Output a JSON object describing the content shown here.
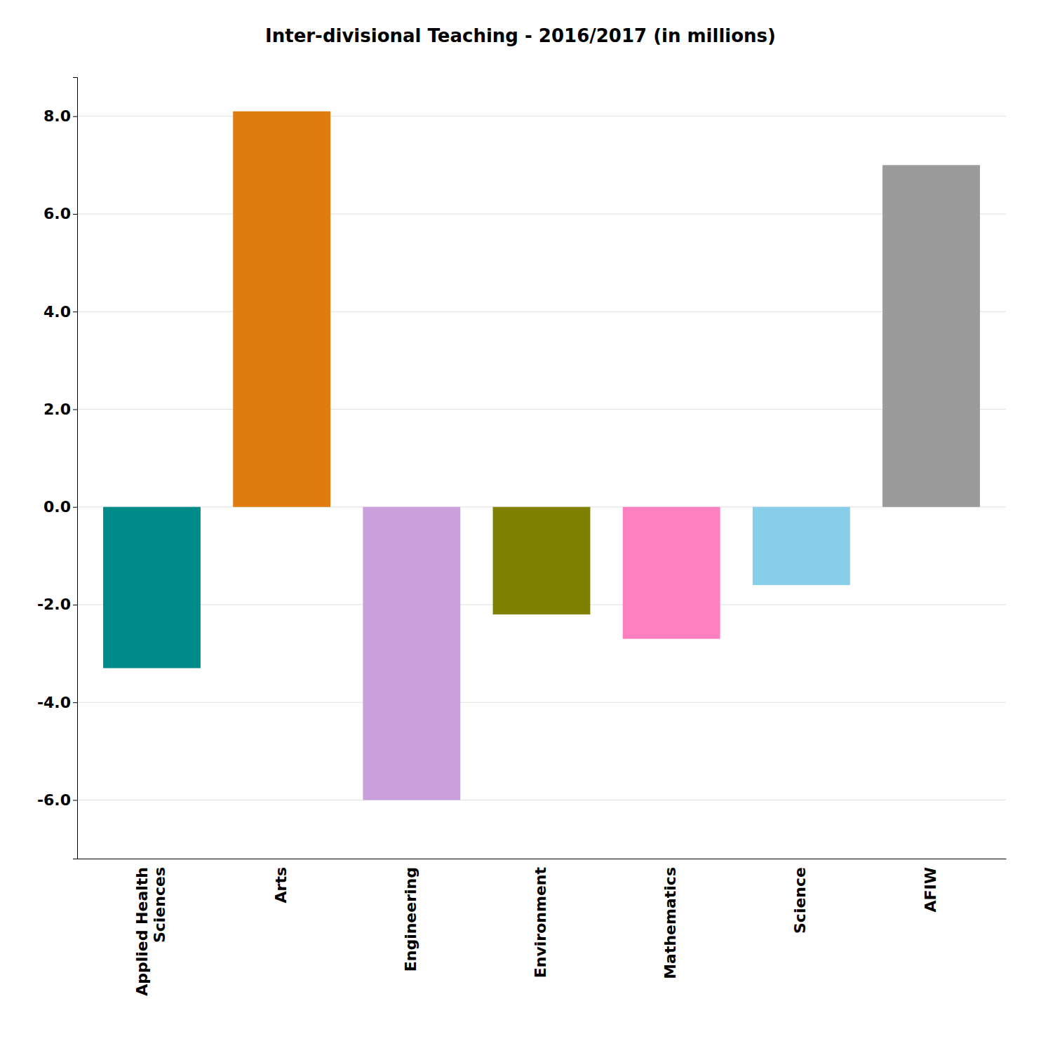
{
  "chart_data": {
    "type": "bar",
    "title": "Inter-divisional Teaching - 2016/2017 (in millions)",
    "categories": [
      "Applied Health\nSciences",
      "Arts",
      "Engineering",
      "Environment",
      "Mathematics",
      "Science",
      "AFIW"
    ],
    "values": [
      -3.3,
      8.1,
      -6.0,
      -2.2,
      -2.7,
      -1.6,
      7.0
    ],
    "colors": [
      "#008B8B",
      "#E07B10",
      "#C9A0DC",
      "#808000",
      "#FF80C0",
      "#87CEEB",
      "#9B9B9B"
    ],
    "ylim": [
      -7.2,
      8.8
    ],
    "yticks": [
      {
        "value": -6.0,
        "label": "-6.0"
      },
      {
        "value": -4.0,
        "label": "-4.0"
      },
      {
        "value": -2.0,
        "label": "-2.0"
      },
      {
        "value": 0.0,
        "label": "0.0"
      },
      {
        "value": 2.0,
        "label": "2.0"
      },
      {
        "value": 4.0,
        "label": "4.0"
      },
      {
        "value": 6.0,
        "label": "6.0"
      },
      {
        "value": 8.0,
        "label": "8.0"
      }
    ],
    "grid": true
  }
}
